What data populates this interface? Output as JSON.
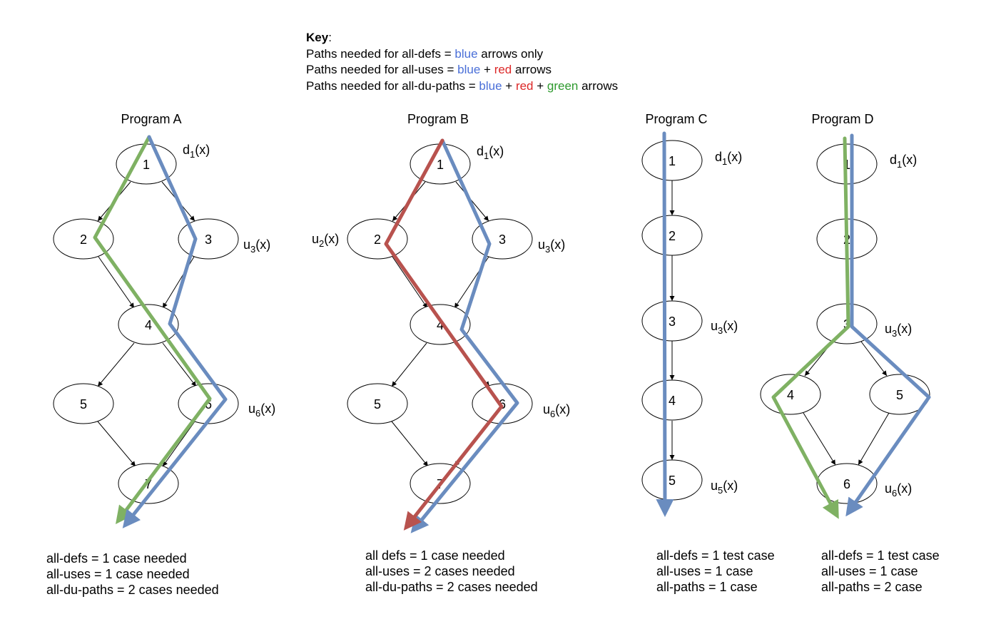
{
  "key": {
    "title": "Key",
    "title_suffix": ":",
    "lines": [
      {
        "prefix": "Paths needed for all-defs = ",
        "p1": "blue",
        "s1": " arrows only",
        "p2": "",
        "s2": "",
        "p3": "",
        "s3": ""
      },
      {
        "prefix": "Paths needed for all-uses = ",
        "p1": "blue",
        "s1": " + ",
        "p2": "red",
        "s2": " arrows",
        "p3": "",
        "s3": ""
      },
      {
        "prefix": "Paths needed for all-du-paths = ",
        "p1": "blue",
        "s1": " + ",
        "p2": "red",
        "s2": " + ",
        "p3": "green",
        "s3": " arrows"
      }
    ]
  },
  "colors": {
    "key_blue": "#4a6fd8",
    "key_red": "#dc2828",
    "key_green": "#2e9a2e",
    "path_blue": "#6a8cbf",
    "path_red": "#b8524e",
    "path_green": "#7fb163"
  },
  "programs": {
    "a": {
      "title": "Program A",
      "nodes": [
        "1",
        "2",
        "3",
        "4",
        "5",
        "6",
        "7"
      ],
      "annotations": {
        "n1": {
          "base": "d",
          "sub": "1",
          "arg": "(x)"
        },
        "n3": {
          "base": "u",
          "sub": "3",
          "arg": "(x)"
        },
        "n6": {
          "base": "u",
          "sub": "6",
          "arg": "(x)"
        }
      },
      "summary": [
        "all-defs = 1 case needed",
        "all-uses = 1 case needed",
        "all-du-paths = 2 cases needed"
      ]
    },
    "b": {
      "title": "Program B",
      "nodes": [
        "1",
        "2",
        "3",
        "4",
        "5",
        "6",
        "7"
      ],
      "annotations": {
        "n1": {
          "base": "d",
          "sub": "1",
          "arg": "(x)"
        },
        "n2": {
          "base": "u",
          "sub": "2",
          "arg": "(x)"
        },
        "n3": {
          "base": "u",
          "sub": "3",
          "arg": "(x)"
        },
        "n6": {
          "base": "u",
          "sub": "6",
          "arg": "(x)"
        }
      },
      "summary": [
        "all defs = 1 case needed",
        "all-uses = 2 cases needed",
        "all-du-paths = 2 cases needed"
      ]
    },
    "c": {
      "title": "Program  C",
      "nodes": [
        "1",
        "2",
        "3",
        "4",
        "5"
      ],
      "annotations": {
        "n1": {
          "base": "d",
          "sub": "1",
          "arg": "(x)"
        },
        "n3": {
          "base": "u",
          "sub": "3",
          "arg": "(x)"
        },
        "n5": {
          "base": "u",
          "sub": "5",
          "arg": "(x)"
        }
      },
      "summary": [
        "all-defs  = 1 test case",
        "all-uses = 1 case",
        "all-paths = 1 case"
      ]
    },
    "d": {
      "title": "Program  D",
      "nodes": [
        "1",
        "2",
        "3",
        "4",
        "5",
        "6"
      ],
      "annotations": {
        "n1": {
          "base": "d",
          "sub": "1",
          "arg": "(x)"
        },
        "n3": {
          "base": "u",
          "sub": "3",
          "arg": "(x)"
        },
        "n6": {
          "base": "u",
          "sub": "6",
          "arg": "(x)"
        }
      },
      "summary": [
        "all-defs  = 1 test case",
        "all-uses = 1 case",
        "all-paths = 2 case"
      ]
    }
  }
}
